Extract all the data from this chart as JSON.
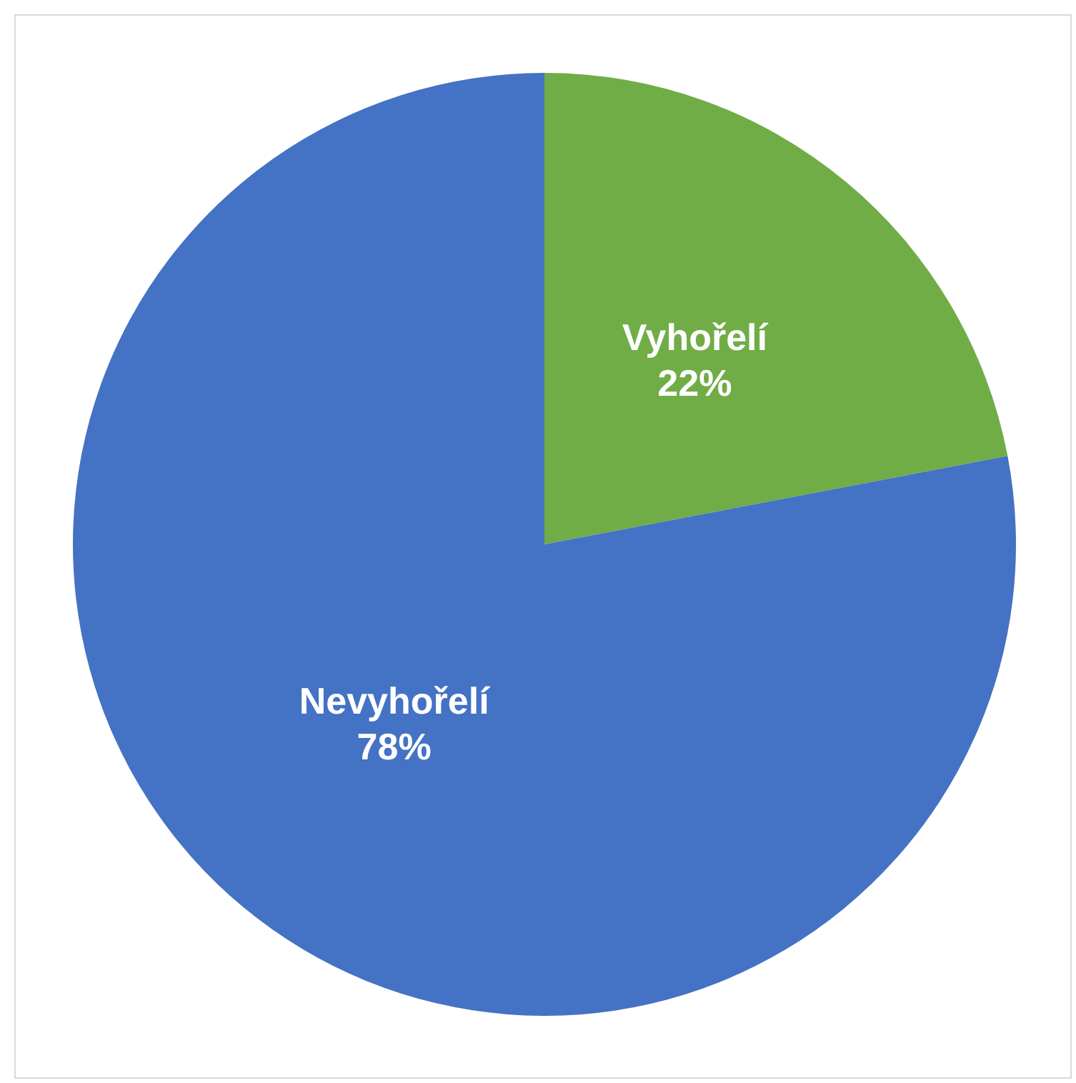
{
  "chart_data": {
    "type": "pie",
    "categories": [
      "Vyhořelí",
      "Nevyhořelí"
    ],
    "values": [
      22,
      78
    ],
    "colors": [
      "#70ad47",
      "#4472c4"
    ],
    "value_labels": [
      "22%",
      "78%"
    ],
    "legend": false
  }
}
